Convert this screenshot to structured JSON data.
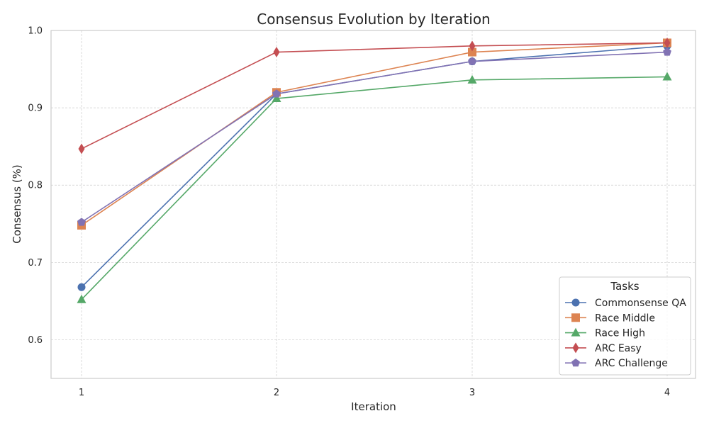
{
  "chart_data": {
    "type": "line",
    "title": "Consensus Evolution by Iteration",
    "xlabel": "Iteration",
    "ylabel": "Consensus (%)",
    "x": [
      1,
      2,
      3,
      4
    ],
    "xticks": [
      "1",
      "2",
      "3",
      "4"
    ],
    "yticks": [
      "0.6",
      "0.7",
      "0.8",
      "0.9",
      "1.0"
    ],
    "ylim": [
      0.55,
      1.0
    ],
    "grid": true,
    "legend": {
      "title": "Tasks",
      "placement": "lower-right"
    },
    "series": [
      {
        "name": "Commonsense QA",
        "color": "#4c72b0",
        "marker": "circle",
        "values": [
          0.668,
          0.918,
          0.96,
          0.98
        ]
      },
      {
        "name": "Race Middle",
        "color": "#dd8452",
        "marker": "square",
        "values": [
          0.748,
          0.92,
          0.972,
          0.984
        ]
      },
      {
        "name": "Race High",
        "color": "#55a868",
        "marker": "triangle",
        "values": [
          0.652,
          0.912,
          0.936,
          0.94
        ]
      },
      {
        "name": "ARC Easy",
        "color": "#c44e52",
        "marker": "diamond",
        "values": [
          0.847,
          0.972,
          0.98,
          0.984
        ]
      },
      {
        "name": "ARC Challenge",
        "color": "#8172b3",
        "marker": "pentagon",
        "values": [
          0.752,
          0.918,
          0.96,
          0.972
        ]
      }
    ]
  }
}
